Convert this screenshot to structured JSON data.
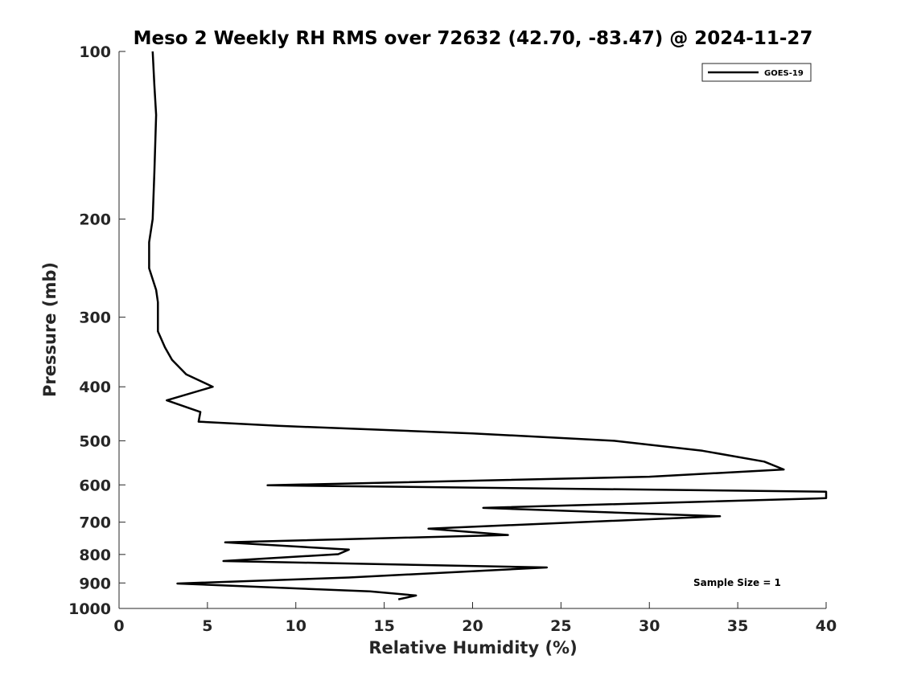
{
  "chart_data": {
    "type": "line",
    "title": "Meso 2 Weekly RH RMS over 72632 (42.70, -83.47) @ 2024-11-27",
    "xlabel": "Relative Humidity (%)",
    "ylabel": "Pressure (mb)",
    "xlim": [
      0,
      40
    ],
    "ylim": [
      100,
      1000
    ],
    "y_scale": "log",
    "y_reversed": true,
    "x_ticks": [
      0,
      5,
      10,
      15,
      20,
      25,
      30,
      35,
      40
    ],
    "y_ticks": [
      100,
      200,
      300,
      400,
      500,
      600,
      700,
      800,
      900,
      1000
    ],
    "grid": false,
    "legend_placement": "top-right",
    "annotation": "Sample Size = 1",
    "series": [
      {
        "name": "GOES-19",
        "color": "#000000",
        "points": [
          [
            1.9,
            100
          ],
          [
            2.0,
            115
          ],
          [
            2.1,
            130
          ],
          [
            2.0,
            165
          ],
          [
            1.9,
            200
          ],
          [
            1.7,
            220
          ],
          [
            1.7,
            245
          ],
          [
            2.1,
            268
          ],
          [
            2.2,
            282
          ],
          [
            2.2,
            318
          ],
          [
            2.6,
            340
          ],
          [
            3.0,
            358
          ],
          [
            3.8,
            380
          ],
          [
            5.3,
            400
          ],
          [
            2.7,
            423
          ],
          [
            4.6,
            444
          ],
          [
            4.5,
            462
          ],
          [
            9.0,
            470
          ],
          [
            20.0,
            485
          ],
          [
            28.0,
            500
          ],
          [
            33.0,
            521
          ],
          [
            36.5,
            545
          ],
          [
            37.6,
            563
          ],
          [
            30.0,
            580
          ],
          [
            8.4,
            601
          ],
          [
            40.0,
            617
          ],
          [
            40.0,
            634
          ],
          [
            20.6,
            660
          ],
          [
            34.0,
            683
          ],
          [
            17.5,
            719
          ],
          [
            22.0,
            738
          ],
          [
            6.0,
            761
          ],
          [
            13.0,
            784
          ],
          [
            12.4,
            799
          ],
          [
            5.9,
            822
          ],
          [
            24.2,
            844
          ],
          [
            13.0,
            880
          ],
          [
            3.3,
            902
          ],
          [
            14.2,
            932
          ],
          [
            16.8,
            948
          ],
          [
            15.8,
            963
          ]
        ]
      }
    ]
  }
}
